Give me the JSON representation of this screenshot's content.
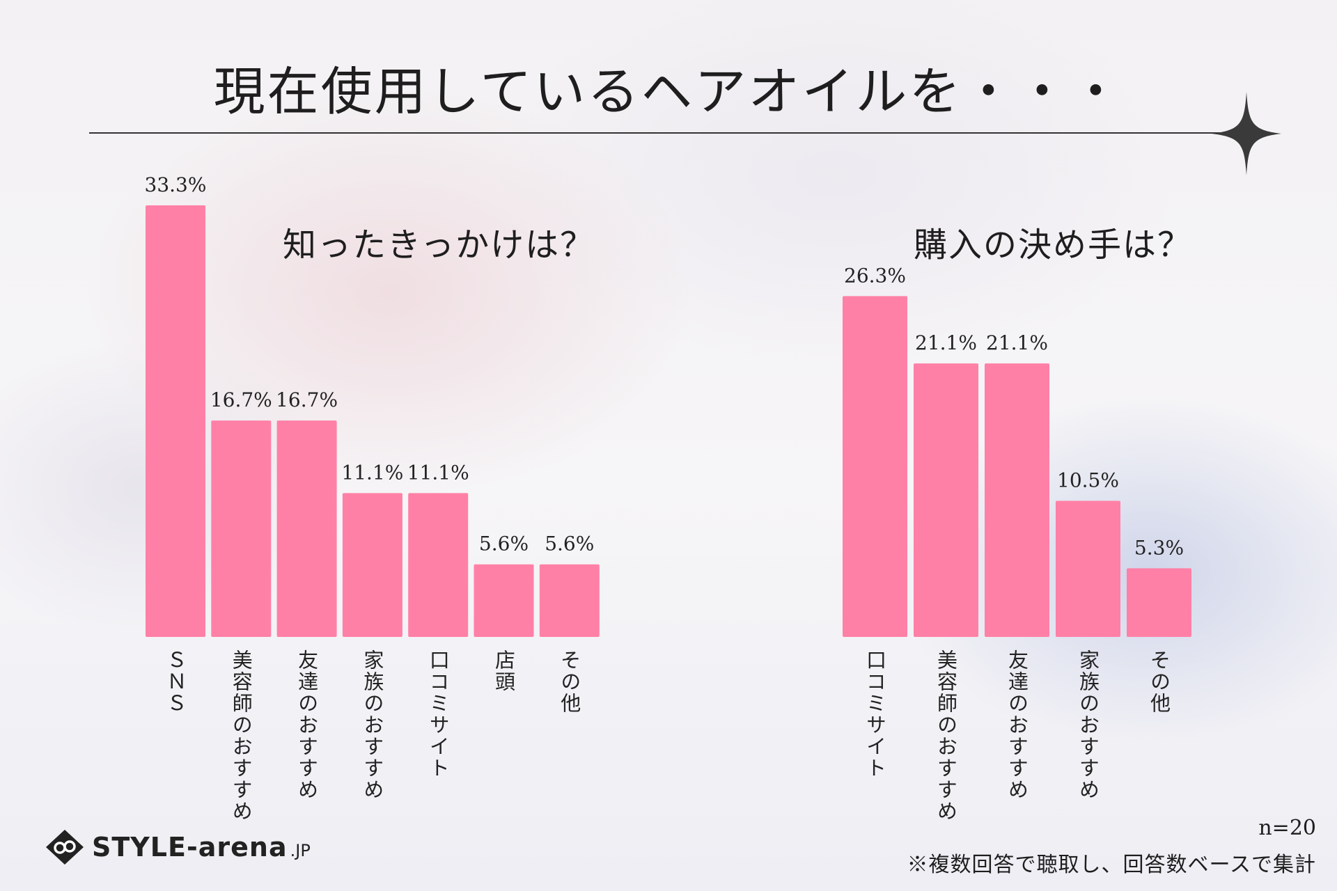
{
  "title": "現在使用しているヘアオイルを・・・",
  "chart_data": [
    {
      "type": "bar",
      "title": "知ったきっかけは？",
      "categories": [
        "ＳＮＳ",
        "美容師のおすすめ",
        "友達のおすすめ",
        "家族のおすすめ",
        "口コミサイト",
        "店頭",
        "その他"
      ],
      "values": [
        33.3,
        16.7,
        16.7,
        11.1,
        11.1,
        5.6,
        5.6
      ],
      "value_labels": [
        "33.3%",
        "16.7%",
        "16.7%",
        "11.1%",
        "11.1%",
        "5.6%",
        "5.6%"
      ],
      "unit": "%",
      "ylim": [
        0,
        33.3
      ],
      "color": "#ff80a6"
    },
    {
      "type": "bar",
      "title": "購入の決め手は？",
      "categories": [
        "口コミサイト",
        "美容師のおすすめ",
        "友達のおすすめ",
        "家族のおすすめ",
        "その他"
      ],
      "values": [
        26.3,
        21.1,
        21.1,
        10.5,
        5.3
      ],
      "value_labels": [
        "26.3%",
        "21.1%",
        "21.1%",
        "10.5%",
        "5.3%"
      ],
      "unit": "%",
      "ylim": [
        0,
        33.3
      ],
      "color": "#ff80a6"
    }
  ],
  "footer": {
    "sample_size": "n=20",
    "note": "※複数回答で聴取し、回答数ベースで集計",
    "logo_text": "STYLE-arena",
    "logo_suffix": ".JP"
  },
  "icons": {
    "sparkle": "sparkle-icon",
    "logo": "logo-mark-icon"
  }
}
